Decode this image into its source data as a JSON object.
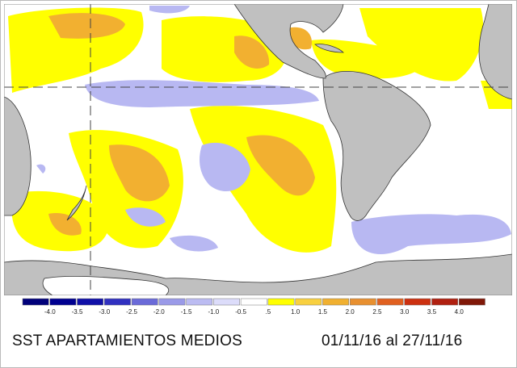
{
  "title": "SST APARTAMIENTOS MEDIOS",
  "date_range": "01/11/16 al 27/11/16",
  "map": {
    "region": "Eastern Pacific / South America / South Atlantic",
    "land_color": "#c0c0c0",
    "reference_lines": [
      "equator-dashed",
      "dateline-dashed"
    ]
  },
  "legend": {
    "labels": [
      "-4.0",
      "-3.5",
      "-3.0",
      "-2.5",
      "-2.0",
      "-1.5",
      "-1.0",
      "-0.5",
      ".5",
      "1.0",
      "1.5",
      "2.0",
      "2.5",
      "3.0",
      "3.5",
      "4.0"
    ],
    "colors": [
      "#00007a",
      "#000090",
      "#1010a8",
      "#3030c0",
      "#6a6ad8",
      "#9a9ae8",
      "#bcbcf2",
      "#dcdcfa",
      "#ffffff",
      "#ffff00",
      "#f8d040",
      "#f0b030",
      "#e89030",
      "#e06020",
      "#cc3010",
      "#b02010",
      "#801808"
    ]
  }
}
